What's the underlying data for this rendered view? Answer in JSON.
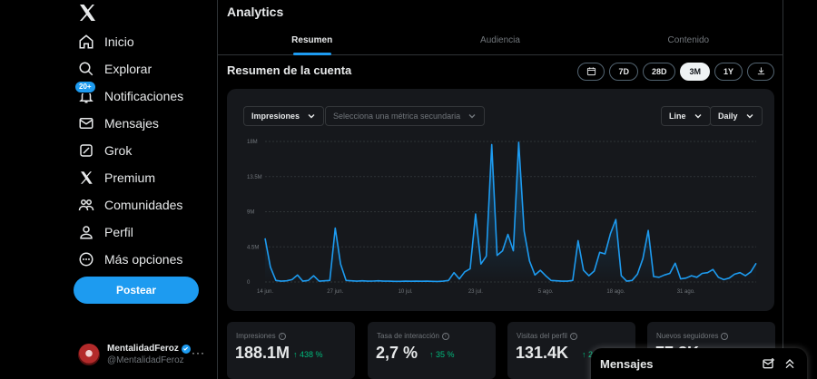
{
  "sidebar": {
    "logo": "x-logo-icon",
    "nav": [
      {
        "icon": "home-icon",
        "label": "Inicio"
      },
      {
        "icon": "search-icon",
        "label": "Explorar"
      },
      {
        "icon": "bell-icon",
        "label": "Notificaciones",
        "badge": "20+"
      },
      {
        "icon": "envelope-icon",
        "label": "Mensajes"
      },
      {
        "icon": "grok-icon",
        "label": "Grok"
      },
      {
        "icon": "x-premium-icon",
        "label": "Premium"
      },
      {
        "icon": "communities-icon",
        "label": "Comunidades"
      },
      {
        "icon": "person-icon",
        "label": "Perfil"
      },
      {
        "icon": "more-circle-icon",
        "label": "Más opciones"
      }
    ],
    "post_button": "Postear",
    "account": {
      "name": "MentalidadFeroz",
      "handle": "@MentalidadFeroz",
      "more": "···"
    }
  },
  "main": {
    "title": "Analytics",
    "tabs": [
      {
        "label": "Resumen",
        "active": true
      },
      {
        "label": "Audiencia",
        "active": false
      },
      {
        "label": "Contenido",
        "active": false
      }
    ],
    "section_title": "Resumen de la cuenta",
    "ranges": [
      "7D",
      "28D",
      "3M",
      "1Y"
    ],
    "selected_range": "3M"
  },
  "chart_controls": {
    "primary_metric": "Impresiones",
    "secondary_metric_placeholder": "Selecciona una métrica secundaria",
    "chart_type": "Line",
    "granularity": "Daily"
  },
  "chart_data": {
    "type": "area",
    "title": "",
    "xlabel": "",
    "ylabel": "",
    "ylim": [
      0,
      18000000
    ],
    "y_ticks": [
      "0",
      "4.5M",
      "9M",
      "13.5M",
      "18M"
    ],
    "x_tick_labels": [
      "14 jun.",
      "27 jun.",
      "10 jul.",
      "23 jul.",
      "5 ago.",
      "18 ago.",
      "31 ago."
    ],
    "x_tick_days": [
      0,
      13,
      26,
      39,
      52,
      65,
      78
    ],
    "grid": true,
    "series": [
      {
        "color": "#1d9bf0",
        "values": [
          5600000,
          1900000,
          200000,
          100000,
          150000,
          300000,
          900000,
          100000,
          200000,
          800000,
          100000,
          150000,
          200000,
          6900000,
          2300000,
          200000,
          150000,
          100000,
          150000,
          100000,
          120000,
          150000,
          100000,
          100000,
          80000,
          80000,
          100000,
          90000,
          100000,
          90000,
          100000,
          80000,
          70000,
          100000,
          200000,
          1200000,
          400000,
          1300000,
          1700000,
          8700000,
          2300000,
          3300000,
          17600000,
          3400000,
          4000000,
          6100000,
          4000000,
          17900000,
          6500000,
          2700000,
          900000,
          1500000,
          800000,
          200000,
          150000,
          100000,
          100000,
          200000,
          5300000,
          1500000,
          800000,
          1400000,
          3800000,
          3600000,
          6200000,
          8000000,
          800000,
          100000,
          200000,
          1000000,
          3000000,
          6600000,
          700000,
          600000,
          900000,
          1100000,
          2400000,
          400000,
          500000,
          800000,
          600000,
          1100000,
          1200000,
          1600000,
          600000,
          300000,
          500000,
          1000000,
          1200000,
          800000,
          1300000,
          2400000
        ]
      }
    ]
  },
  "stats": [
    {
      "label": "Impresiones",
      "value": "188.1M",
      "change": "↑ 438 %"
    },
    {
      "label": "Tasa de interacción",
      "value": "2,7 %",
      "change": "↑ 35 %"
    },
    {
      "label": "Visitas del perfil",
      "value": "131.4K",
      "change": "↑ 20"
    },
    {
      "label": "Nuevos seguidores",
      "value": "77.8K",
      "change": ""
    }
  ],
  "messages_drawer": {
    "title": "Mensajes",
    "icons": [
      "compose-message-icon",
      "expand-up-icon"
    ]
  }
}
